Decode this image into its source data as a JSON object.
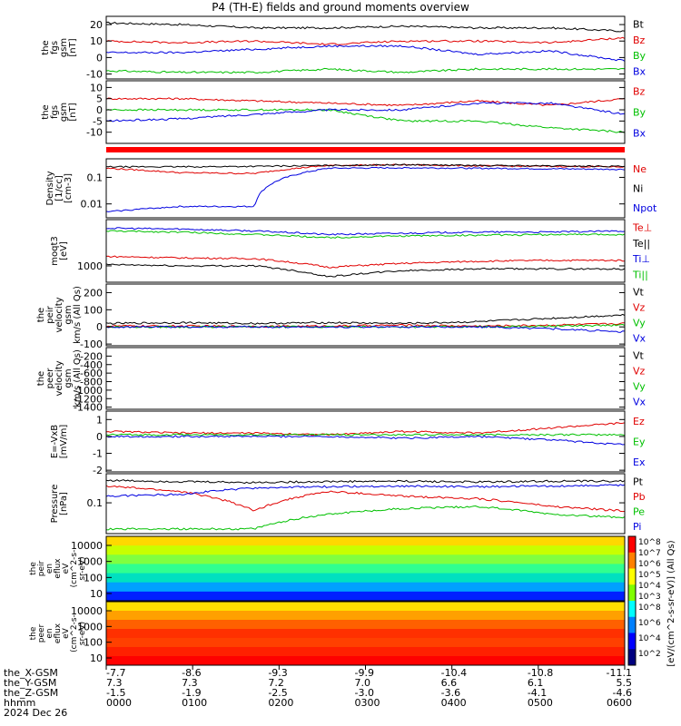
{
  "title": "P4 (TH-E) fields and ground moments overview",
  "chart_data": {
    "type": "line",
    "panels": [
      {
        "ylabel": [
          "the",
          "fgs",
          "gsm",
          "[nT]"
        ],
        "yticks": [
          20,
          10,
          0,
          -10
        ],
        "ylim": [
          -13,
          25
        ],
        "log": false,
        "series": [
          {
            "name": "Bt",
            "color": "#000000",
            "values": [
              21,
              20,
              18,
              18,
              19,
              18,
              18,
              16
            ]
          },
          {
            "name": "Bz",
            "color": "#e00000",
            "values": [
              10,
              9,
              10,
              8,
              10,
              10,
              9,
              12
            ]
          },
          {
            "name": "By",
            "color": "#00c000",
            "values": [
              -8,
              -9,
              -9,
              -7,
              -9,
              -7,
              -7,
              -7
            ]
          },
          {
            "name": "Bx",
            "color": "#0000e0",
            "values": [
              3,
              3,
              5,
              7,
              7,
              2,
              4,
              -2
            ]
          }
        ]
      },
      {
        "ylabel": [
          "the",
          "fgs",
          "gsm",
          "[nT]"
        ],
        "yticks": [
          10,
          5,
          0,
          -5,
          -10
        ],
        "ylim": [
          -15,
          13
        ],
        "log": false,
        "series": [
          {
            "name": "Bz",
            "color": "#e00000",
            "values": [
              5,
              5,
              4,
              3,
              2,
              4,
              2,
              5
            ]
          },
          {
            "name": "By",
            "color": "#00c000",
            "values": [
              0,
              0,
              0,
              0,
              -5,
              -5,
              -8,
              -10
            ]
          },
          {
            "name": "Bx",
            "color": "#0000e0",
            "values": [
              -5,
              -4,
              -2,
              0,
              0,
              3,
              3,
              -2
            ]
          }
        ]
      },
      {
        "ylabel": [
          "Density",
          "[1/cc]",
          "[cm-3]"
        ],
        "yticks": [
          0.1,
          0.01
        ],
        "ylim": [
          0.003,
          0.5
        ],
        "log": true,
        "series": [
          {
            "name": "Ne",
            "color": "#e00000",
            "values": [
              0.22,
              0.15,
              0.14,
              0.28,
              0.3,
              0.27,
              0.26,
              0.25
            ]
          },
          {
            "name": "Ni",
            "color": "#000000",
            "values": [
              0.25,
              0.25,
              0.26,
              0.28,
              0.3,
              0.28,
              0.27,
              0.26
            ]
          },
          {
            "name": "Npot",
            "color": "#0000e0",
            "values": [
              0.005,
              0.008,
              0.008,
              0.22,
              0.23,
              0.22,
              0.21,
              0.2
            ]
          }
        ]
      },
      {
        "ylabel": [
          "moqt3",
          "[eV]"
        ],
        "yticks": [
          1000
        ],
        "ylim": [
          300,
          30000
        ],
        "log": true,
        "series": [
          {
            "name": "Te⊥",
            "color": "#e00000",
            "values": [
              2000,
              1800,
              1700,
              900,
              1200,
              1400,
              1500,
              1500
            ]
          },
          {
            "name": "Te||",
            "color": "#000000",
            "values": [
              1100,
              1000,
              1000,
              450,
              700,
              800,
              800,
              800
            ]
          },
          {
            "name": "Ti⊥",
            "color": "#0000e0",
            "values": [
              16000,
              15000,
              13000,
              10000,
              11000,
              12000,
              12000,
              13000
            ]
          },
          {
            "name": "Ti||",
            "color": "#00c000",
            "values": [
              13000,
              12000,
              10000,
              8000,
              9000,
              9500,
              10000,
              10000
            ]
          }
        ]
      },
      {
        "ylabel": [
          "the",
          "peir",
          "velocity",
          "gsm",
          "km/s (All Qs)"
        ],
        "yticks": [
          200,
          100,
          0,
          -100
        ],
        "ylim": [
          -110,
          250
        ],
        "log": false,
        "series": [
          {
            "name": "Vt",
            "color": "#000000",
            "values": [
              20,
              25,
              20,
              25,
              20,
              30,
              50,
              70
            ]
          },
          {
            "name": "Vz",
            "color": "#e00000",
            "values": [
              5,
              5,
              3,
              5,
              10,
              5,
              10,
              20
            ]
          },
          {
            "name": "Vy",
            "color": "#00c000",
            "values": [
              0,
              0,
              0,
              0,
              0,
              0,
              5,
              10
            ]
          },
          {
            "name": "Vx",
            "color": "#0000e0",
            "values": [
              0,
              0,
              0,
              0,
              0,
              0,
              -10,
              -30
            ]
          }
        ]
      },
      {
        "ylabel": [
          "the",
          "peer",
          "velocity",
          "gsm",
          "km/s (All Qs)"
        ],
        "yticks": [
          -200,
          -400,
          -600,
          -800,
          -1000,
          -1200,
          -1400
        ],
        "ylim": [
          -1450,
          0
        ],
        "log": false,
        "series": [
          {
            "name": "Vt",
            "color": "#000000",
            "values": []
          },
          {
            "name": "Vz",
            "color": "#e00000",
            "values": []
          },
          {
            "name": "Vy",
            "color": "#00c000",
            "values": []
          },
          {
            "name": "Vx",
            "color": "#0000e0",
            "values": []
          }
        ]
      },
      {
        "ylabel": [
          "E=-VxB",
          "[mV/m]"
        ],
        "yticks": [
          1,
          0,
          -1,
          -2
        ],
        "ylim": [
          -2.1,
          1.5
        ],
        "log": false,
        "series": [
          {
            "name": "Ez",
            "color": "#e00000",
            "values": [
              0.3,
              0.2,
              0.2,
              0.1,
              0.3,
              0.2,
              0.5,
              0.8
            ]
          },
          {
            "name": "Ey",
            "color": "#00c000",
            "values": [
              0.1,
              0.1,
              0.1,
              0.1,
              0.1,
              0.1,
              0.1,
              0.1
            ]
          },
          {
            "name": "Ex",
            "color": "#0000e0",
            "values": [
              0,
              0,
              0,
              0,
              -0.1,
              0,
              -0.2,
              -0.5
            ]
          }
        ]
      },
      {
        "ylabel": [
          "Pressure",
          "[nPa]"
        ],
        "yticks": [
          0.1
        ],
        "ylim": [
          0.015,
          0.6
        ],
        "log": true,
        "series": [
          {
            "name": "Pt",
            "color": "#000000",
            "values": [
              0.4,
              0.37,
              0.35,
              0.37,
              0.38,
              0.36,
              0.38,
              0.38
            ]
          },
          {
            "name": "Pb",
            "color": "#e00000",
            "values": [
              0.28,
              0.2,
              0.06,
              0.2,
              0.15,
              0.13,
              0.08,
              0.06
            ]
          },
          {
            "name": "Pe",
            "color": "#00c000",
            "values": [
              0.02,
              0.02,
              0.02,
              0.05,
              0.07,
              0.08,
              0.05,
              0.04
            ]
          },
          {
            "name": "Pi",
            "color": "#0000e0",
            "values": [
              0.15,
              0.17,
              0.25,
              0.27,
              0.28,
              0.27,
              0.28,
              0.3
            ]
          }
        ]
      }
    ],
    "spectrograms": [
      {
        "ylabel": [
          "the",
          "peir",
          "en",
          "eflux",
          "eV",
          "(cm^2-s-",
          "sr-eV)"
        ],
        "yticks": [
          10000,
          1000,
          100,
          10
        ]
      },
      {
        "ylabel": [
          "the",
          "peer",
          "en",
          "eflux",
          "eV",
          "(cm^2-s-",
          "sr-eV)"
        ],
        "yticks": [
          10000,
          1000,
          100,
          10
        ]
      }
    ],
    "colorbar": {
      "label": "[eV/(cm^2-s-sr-eV)] (All Qs)",
      "upper_ticks": [
        "10^8",
        "10^7",
        "10^6",
        "10^5",
        "10^4",
        "10^3"
      ],
      "lower_ticks": [
        "10^8",
        "10^6",
        "10^4",
        "10^2"
      ]
    },
    "x_axis": {
      "row_labels": [
        "the_X-GSM",
        "the_Y-GSM",
        "the_Z-GSM",
        "hhmm",
        "2024 Dec 26"
      ],
      "ticks": [
        {
          "x": "-7.7",
          "y": "7.3",
          "z": "-1.5",
          "t": "0000"
        },
        {
          "x": "-8.6",
          "y": "7.3",
          "z": "-1.9",
          "t": "0100"
        },
        {
          "x": "-9.3",
          "y": "7.2",
          "z": "-2.5",
          "t": "0200"
        },
        {
          "x": "-9.9",
          "y": "7.0",
          "z": "-3.0",
          "t": "0300"
        },
        {
          "x": "-10.4",
          "y": "6.6",
          "z": "-3.6",
          "t": "0400"
        },
        {
          "x": "-10.8",
          "y": "6.1",
          "z": "-4.1",
          "t": "0500"
        },
        {
          "x": "-11.1",
          "y": "5.5",
          "z": "-4.6",
          "t": "0600"
        }
      ]
    }
  }
}
